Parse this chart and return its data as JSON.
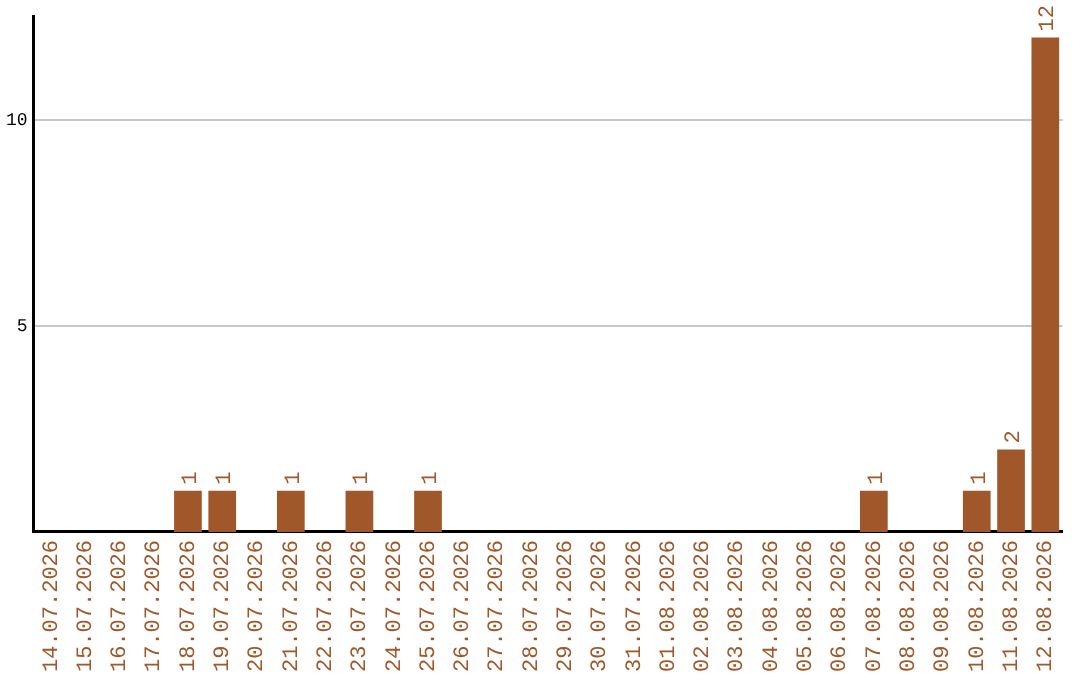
{
  "chart_data": {
    "type": "bar",
    "categories": [
      "14.07.2026",
      "15.07.2026",
      "16.07.2026",
      "17.07.2026",
      "18.07.2026",
      "19.07.2026",
      "20.07.2026",
      "21.07.2026",
      "22.07.2026",
      "23.07.2026",
      "24.07.2026",
      "25.07.2026",
      "26.07.2026",
      "27.07.2026",
      "28.07.2026",
      "29.07.2026",
      "30.07.2026",
      "31.07.2026",
      "01.08.2026",
      "02.08.2026",
      "03.08.2026",
      "04.08.2026",
      "05.08.2026",
      "06.08.2026",
      "07.08.2026",
      "08.08.2026",
      "09.08.2026",
      "10.08.2026",
      "11.08.2026",
      "12.08.2026"
    ],
    "values": [
      0,
      0,
      0,
      0,
      1,
      1,
      0,
      1,
      0,
      1,
      0,
      1,
      0,
      0,
      0,
      0,
      0,
      0,
      0,
      0,
      0,
      0,
      0,
      0,
      1,
      0,
      0,
      1,
      2,
      12
    ],
    "value_labels": [
      null,
      null,
      null,
      null,
      "1",
      "1",
      null,
      "1",
      null,
      "1",
      null,
      "1",
      null,
      null,
      null,
      null,
      null,
      null,
      null,
      null,
      null,
      null,
      null,
      null,
      "1",
      null,
      null,
      "1",
      "2",
      "12"
    ],
    "color": "#a0582a",
    "ylim": [
      0,
      12.5
    ],
    "yticks": [
      5,
      10
    ],
    "grid": "y",
    "legend": false
  }
}
